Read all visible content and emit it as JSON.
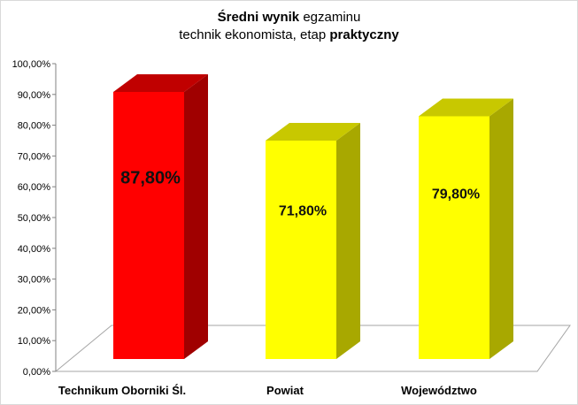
{
  "chart_data": {
    "type": "bar",
    "title_parts": {
      "line1_bold": "Średni wynik",
      "line1_rest": " egzaminu",
      "line2_rest": "technik ekonomista, etap ",
      "line2_bold": "praktyczny"
    },
    "categories": [
      "Technikum Oborniki Śl.",
      "Powiat",
      "Województwo"
    ],
    "values": [
      87.8,
      71.8,
      79.8
    ],
    "data_labels": [
      "87,80%",
      "71,80%",
      "79,80%"
    ],
    "y_ticks": [
      "0,00%",
      "10,00%",
      "20,00%",
      "30,00%",
      "40,00%",
      "50,00%",
      "60,00%",
      "70,00%",
      "80,00%",
      "90,00%",
      "100,00%"
    ],
    "ylim": [
      0,
      100
    ],
    "xlabel": "",
    "ylabel": "",
    "grid": false,
    "legend": "none",
    "colors": {
      "front": [
        "#ff0000",
        "#ffff00",
        "#ffff00"
      ],
      "top": [
        "#c00000",
        "#c8c800",
        "#c8c800"
      ],
      "side": [
        "#a00000",
        "#a8a800",
        "#a8a800"
      ],
      "floor_stroke": "#a6a6a6",
      "axis": "#808080"
    }
  }
}
